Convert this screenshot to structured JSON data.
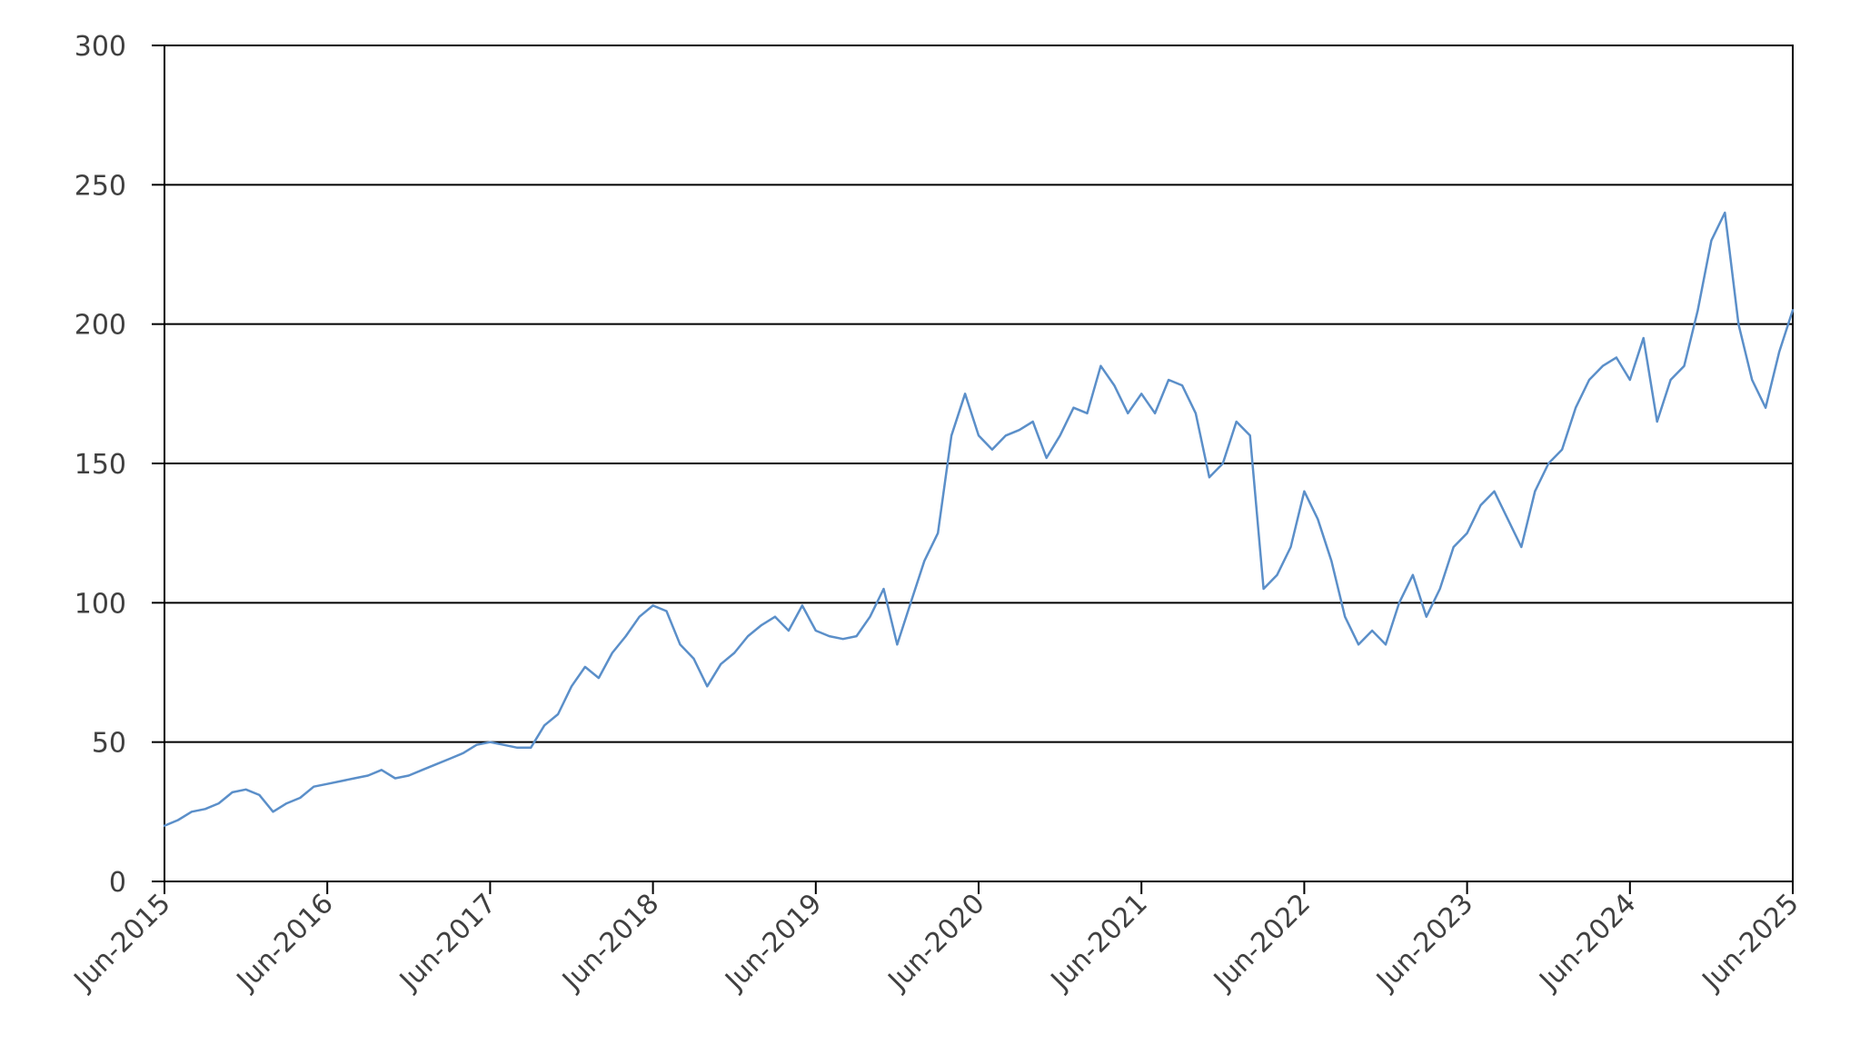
{
  "chart_data": {
    "type": "line",
    "title": "",
    "xlabel": "",
    "ylabel": "",
    "ylim": [
      0,
      300
    ],
    "yticks": [
      0,
      50,
      100,
      150,
      200,
      250,
      300
    ],
    "ytick_labels": [
      "0",
      "50",
      "100",
      "150",
      "200",
      "250",
      "300"
    ],
    "xlim": [
      "2015-06",
      "2025-06"
    ],
    "xticks": [
      "2015-06",
      "2016-06",
      "2017-06",
      "2018-06",
      "2019-06",
      "2020-06",
      "2021-06",
      "2022-06",
      "2023-06",
      "2024-06",
      "2025-06"
    ],
    "xtick_labels": [
      "Jun-2015",
      "Jun-2016",
      "Jun-2017",
      "Jun-2018",
      "Jun-2019",
      "Jun-2020",
      "Jun-2021",
      "Jun-2022",
      "Jun-2023",
      "Jun-2024",
      "Jun-2025"
    ],
    "grid": "horizontal",
    "legend": "none",
    "line_color": "#5b8fc9",
    "series": [
      {
        "x": [
          "2015-06",
          "2015-07",
          "2015-08",
          "2015-09",
          "2015-10",
          "2015-11",
          "2015-12",
          "2016-01",
          "2016-02",
          "2016-03",
          "2016-04",
          "2016-05",
          "2016-06",
          "2016-07",
          "2016-08",
          "2016-09",
          "2016-10",
          "2016-11",
          "2016-12",
          "2017-01",
          "2017-02",
          "2017-03",
          "2017-04",
          "2017-05",
          "2017-06",
          "2017-07",
          "2017-08",
          "2017-09",
          "2017-10",
          "2017-11",
          "2017-12",
          "2018-01",
          "2018-02",
          "2018-03",
          "2018-04",
          "2018-05",
          "2018-06",
          "2018-07",
          "2018-08",
          "2018-09",
          "2018-10",
          "2018-11",
          "2018-12",
          "2019-01",
          "2019-02",
          "2019-03",
          "2019-04",
          "2019-05",
          "2019-06",
          "2019-07",
          "2019-08",
          "2019-09",
          "2019-10",
          "2019-11",
          "2019-12",
          "2020-01",
          "2020-02",
          "2020-03",
          "2020-04",
          "2020-05",
          "2020-06",
          "2020-07",
          "2020-08",
          "2020-09",
          "2020-10",
          "2020-11",
          "2020-12",
          "2021-01",
          "2021-02",
          "2021-03",
          "2021-04",
          "2021-05",
          "2021-06",
          "2021-07",
          "2021-08",
          "2021-09",
          "2021-10",
          "2021-11",
          "2021-12",
          "2022-01",
          "2022-02",
          "2022-03",
          "2022-04",
          "2022-05",
          "2022-06",
          "2022-07",
          "2022-08",
          "2022-09",
          "2022-10",
          "2022-11",
          "2022-12",
          "2023-01",
          "2023-02",
          "2023-03",
          "2023-04",
          "2023-05",
          "2023-06",
          "2023-07",
          "2023-08",
          "2023-09",
          "2023-10",
          "2023-11",
          "2023-12",
          "2024-01",
          "2024-02",
          "2024-03",
          "2024-04",
          "2024-05",
          "2024-06",
          "2024-07",
          "2024-08",
          "2024-09",
          "2024-10",
          "2024-11",
          "2024-12",
          "2025-01",
          "2025-02",
          "2025-03",
          "2025-04",
          "2025-05",
          "2025-06"
        ],
        "values": [
          20,
          22,
          25,
          26,
          28,
          32,
          33,
          31,
          25,
          28,
          30,
          34,
          35,
          36,
          37,
          38,
          40,
          37,
          38,
          40,
          42,
          44,
          46,
          49,
          50,
          49,
          48,
          48,
          56,
          60,
          70,
          77,
          73,
          82,
          88,
          95,
          99,
          97,
          85,
          80,
          70,
          78,
          82,
          88,
          92,
          95,
          90,
          99,
          90,
          88,
          87,
          88,
          95,
          105,
          85,
          100,
          115,
          125,
          160,
          175,
          160,
          155,
          160,
          162,
          165,
          152,
          160,
          170,
          168,
          185,
          178,
          168,
          175,
          168,
          180,
          178,
          168,
          145,
          150,
          165,
          160,
          105,
          110,
          120,
          140,
          130,
          115,
          95,
          85,
          90,
          85,
          100,
          110,
          95,
          105,
          120,
          125,
          135,
          140,
          130,
          120,
          140,
          150,
          155,
          170,
          180,
          185,
          188,
          180,
          195,
          165,
          180,
          185,
          205,
          230,
          240,
          200,
          180,
          170,
          190,
          205
        ]
      }
    ]
  }
}
